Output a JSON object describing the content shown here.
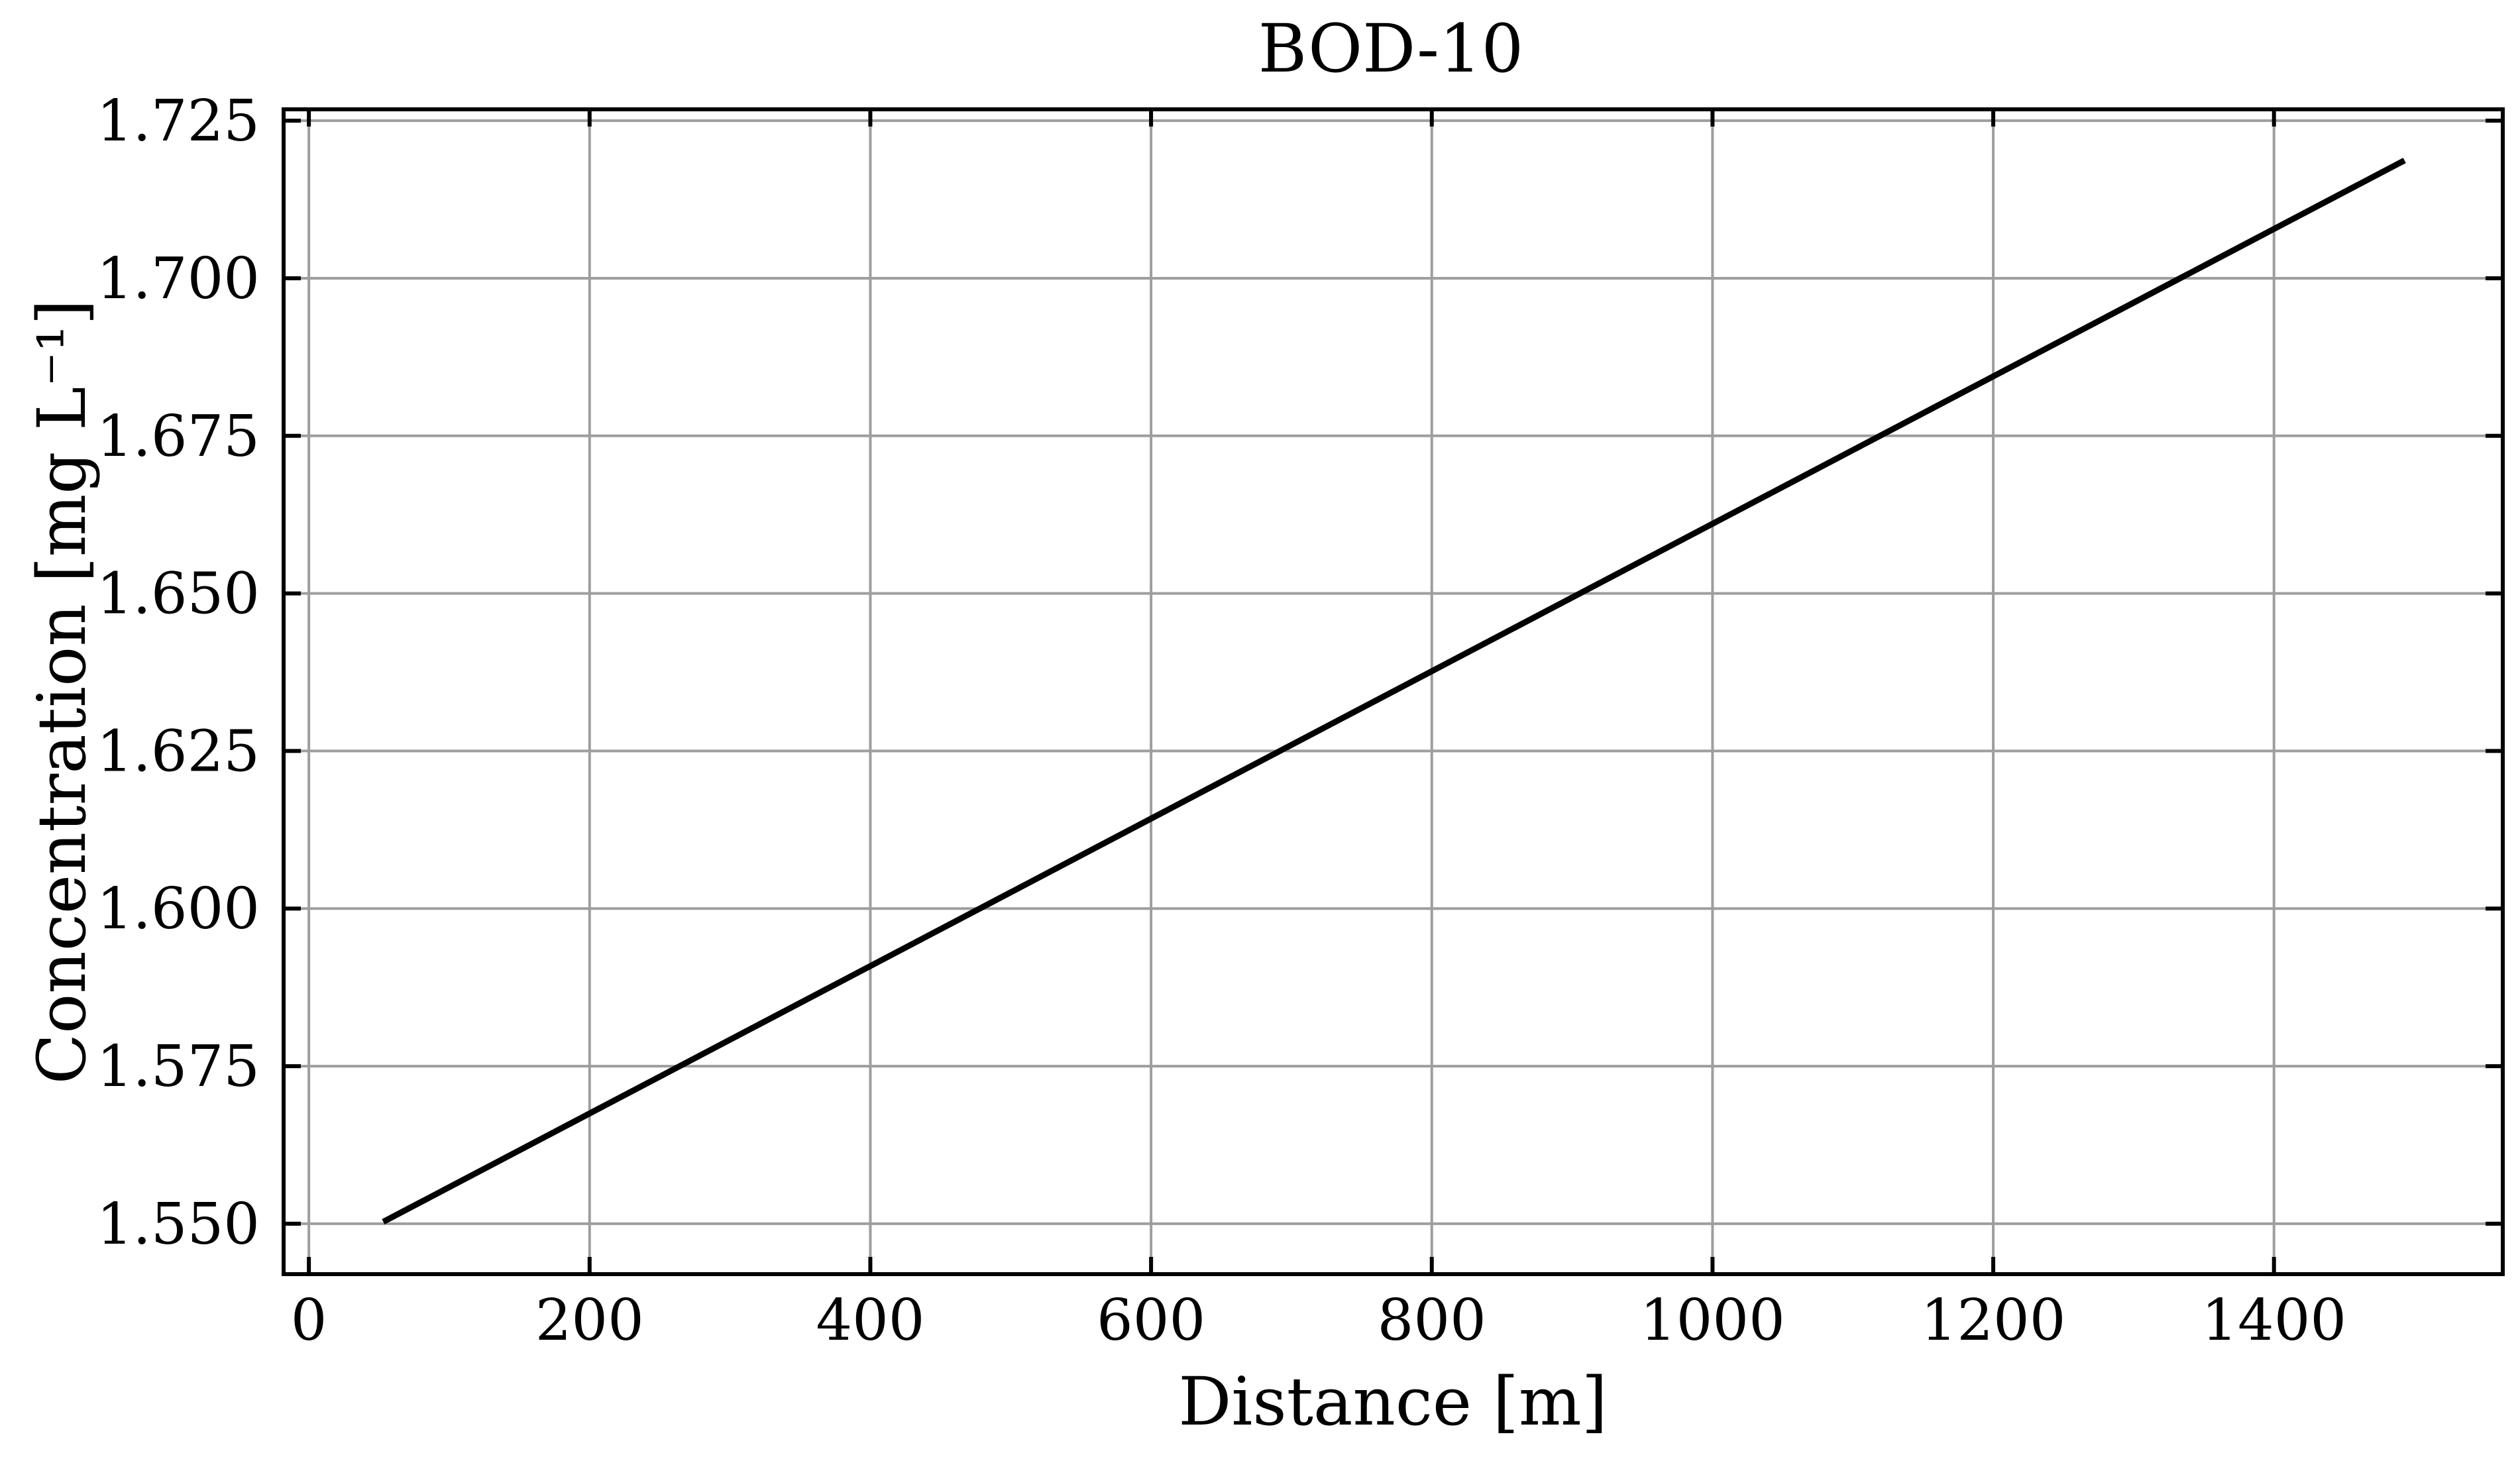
{
  "chart_data": {
    "type": "line",
    "title": "BOD-10",
    "xlabel": "Distance [m]",
    "ylabel": "Concentration [mg L⁻¹]",
    "xlim": [
      -18,
      1563
    ],
    "ylim": [
      1.542,
      1.7268
    ],
    "xticks": [
      0,
      200,
      400,
      600,
      800,
      1000,
      1200,
      1400
    ],
    "xtick_labels": [
      "0",
      "200",
      "400",
      "600",
      "800",
      "1000",
      "1200",
      "1400"
    ],
    "yticks": [
      1.55,
      1.575,
      1.6,
      1.625,
      1.65,
      1.675,
      1.7,
      1.725
    ],
    "ytick_labels": [
      "1.550",
      "1.575",
      "1.600",
      "1.625",
      "1.650",
      "1.675",
      "1.700",
      "1.725"
    ],
    "grid": true,
    "series": [
      {
        "color": "#000000",
        "x": [
          53,
          1493
        ],
        "y": [
          1.5503,
          1.7187
        ]
      }
    ]
  }
}
